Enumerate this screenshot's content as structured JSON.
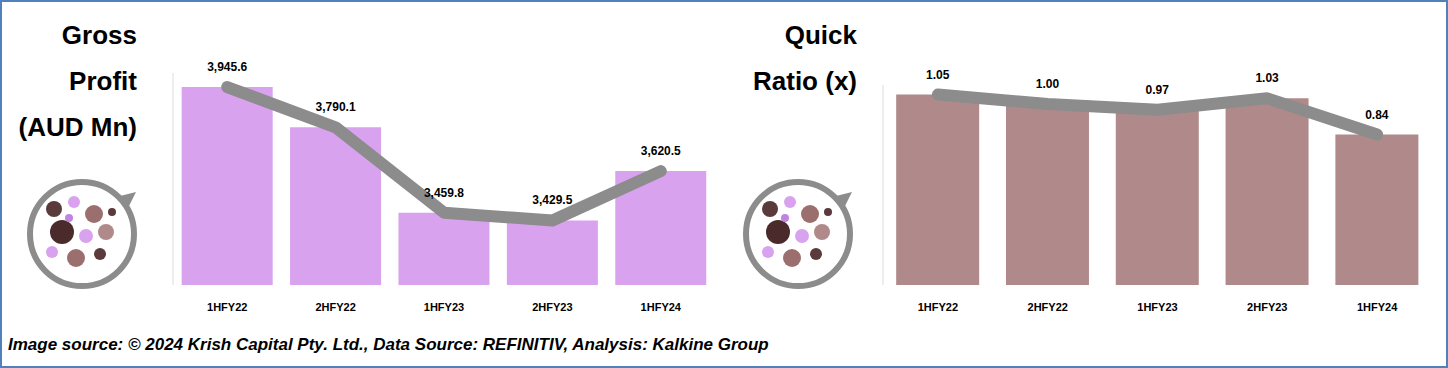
{
  "chart_data": [
    {
      "type": "bar",
      "title": [
        "Gross",
        "Profit",
        "(AUD Mn)"
      ],
      "categories": [
        "1HFY22",
        "2HFY22",
        "1HFY23",
        "2HFY23",
        "1HFY24"
      ],
      "series": [
        {
          "type": "bar",
          "color": "#d9a2ef",
          "values": [
            3945.6,
            3790.1,
            3459.8,
            3429.5,
            3620.5
          ],
          "value_labels": [
            "3,945.6",
            "3,790.1",
            "3,459.8",
            "3,429.5",
            "3,620.5"
          ]
        },
        {
          "type": "line",
          "color": "#8c8c8c",
          "values": [
            3945.6,
            3790.1,
            3459.8,
            3429.5,
            3620.5
          ]
        }
      ],
      "ylim": [
        3180,
        4000
      ],
      "yticks": [],
      "data_labels": true,
      "tick_labels": "x",
      "grid": false
    },
    {
      "type": "bar",
      "title": [
        "Quick",
        "Ratio (x)"
      ],
      "categories": [
        "1HFY22",
        "2HFY22",
        "1HFY23",
        "2HFY23",
        "1HFY24"
      ],
      "series": [
        {
          "type": "bar",
          "color": "#b08a8a",
          "values": [
            1.05,
            1.0,
            0.97,
            1.03,
            0.84
          ],
          "value_labels": [
            "1.05",
            "1.00",
            "0.97",
            "1.03",
            "0.84"
          ]
        },
        {
          "type": "line",
          "color": "#8c8c8c",
          "values": [
            1.05,
            1.0,
            0.97,
            1.03,
            0.84
          ]
        }
      ],
      "ylim": [
        0.05,
        1.1
      ],
      "yticks": [],
      "data_labels": true,
      "tick_labels": "x",
      "grid": false
    }
  ],
  "caption": "Image source: © 2024 Krish Capital Pty. Ltd., Data Source: REFINITIV, Analysis: Kalkine Group"
}
